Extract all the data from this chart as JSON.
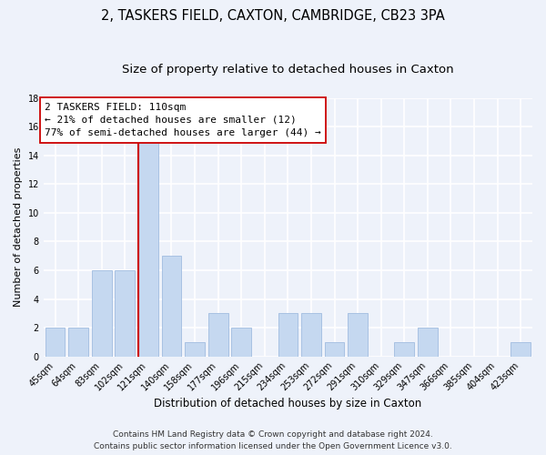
{
  "title": "2, TASKERS FIELD, CAXTON, CAMBRIDGE, CB23 3PA",
  "subtitle": "Size of property relative to detached houses in Caxton",
  "xlabel": "Distribution of detached houses by size in Caxton",
  "ylabel": "Number of detached properties",
  "categories": [
    "45sqm",
    "64sqm",
    "83sqm",
    "102sqm",
    "121sqm",
    "140sqm",
    "158sqm",
    "177sqm",
    "196sqm",
    "215sqm",
    "234sqm",
    "253sqm",
    "272sqm",
    "291sqm",
    "310sqm",
    "329sqm",
    "347sqm",
    "366sqm",
    "385sqm",
    "404sqm",
    "423sqm"
  ],
  "values": [
    2,
    2,
    6,
    6,
    15,
    7,
    1,
    3,
    2,
    0,
    3,
    3,
    1,
    3,
    0,
    1,
    2,
    0,
    0,
    0,
    1
  ],
  "bar_color": "#c5d8f0",
  "bar_edge_color": "#a0bce0",
  "marker_line_index": 4,
  "marker_line_color": "#cc0000",
  "annotation_line1": "2 TASKERS FIELD: 110sqm",
  "annotation_line2": "← 21% of detached houses are smaller (12)",
  "annotation_line3": "77% of semi-detached houses are larger (44) →",
  "annotation_box_color": "#ffffff",
  "annotation_box_edge_color": "#cc0000",
  "ylim": [
    0,
    18
  ],
  "yticks": [
    0,
    2,
    4,
    6,
    8,
    10,
    12,
    14,
    16,
    18
  ],
  "background_color": "#eef2fa",
  "plot_bg_color": "#eef2fa",
  "grid_color": "#ffffff",
  "title_fontsize": 10.5,
  "subtitle_fontsize": 9.5,
  "xlabel_fontsize": 8.5,
  "ylabel_fontsize": 8,
  "tick_fontsize": 7,
  "annotation_fontsize": 8,
  "footer_fontsize": 6.5,
  "footer_line1": "Contains HM Land Registry data © Crown copyright and database right 2024.",
  "footer_line2": "Contains public sector information licensed under the Open Government Licence v3.0."
}
